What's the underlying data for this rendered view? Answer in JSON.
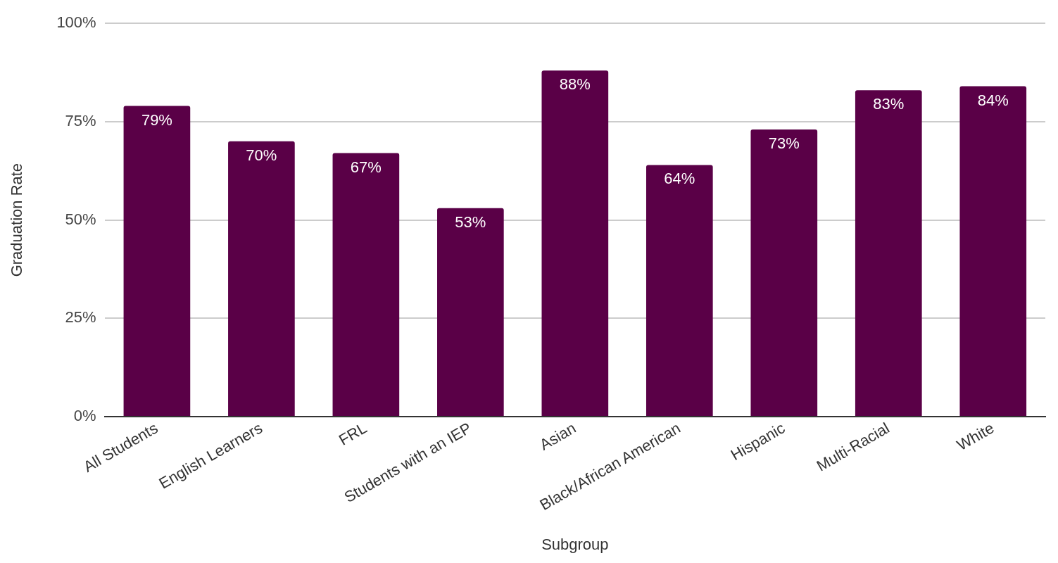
{
  "chart_data": {
    "type": "bar",
    "xlabel": "Subgroup",
    "ylabel": "Graduation Rate",
    "categories": [
      "All Students",
      "English Learners",
      "FRL",
      "Students with an IEP",
      "Asian",
      "Black/African American",
      "Hispanic",
      "Multi-Racial",
      "White"
    ],
    "values": [
      79,
      70,
      67,
      53,
      88,
      64,
      73,
      83,
      84
    ],
    "value_labels": [
      "79%",
      "70%",
      "67%",
      "53%",
      "88%",
      "64%",
      "73%",
      "83%",
      "84%"
    ],
    "color": "#5a0047",
    "ylim": [
      0,
      100
    ],
    "yticks": [
      {
        "value": 0,
        "label": "0%"
      },
      {
        "value": 25,
        "label": "25%"
      },
      {
        "value": 50,
        "label": "50%"
      },
      {
        "value": 75,
        "label": "75%"
      },
      {
        "value": 100,
        "label": "100%"
      }
    ],
    "grid": "y",
    "legend": false
  }
}
